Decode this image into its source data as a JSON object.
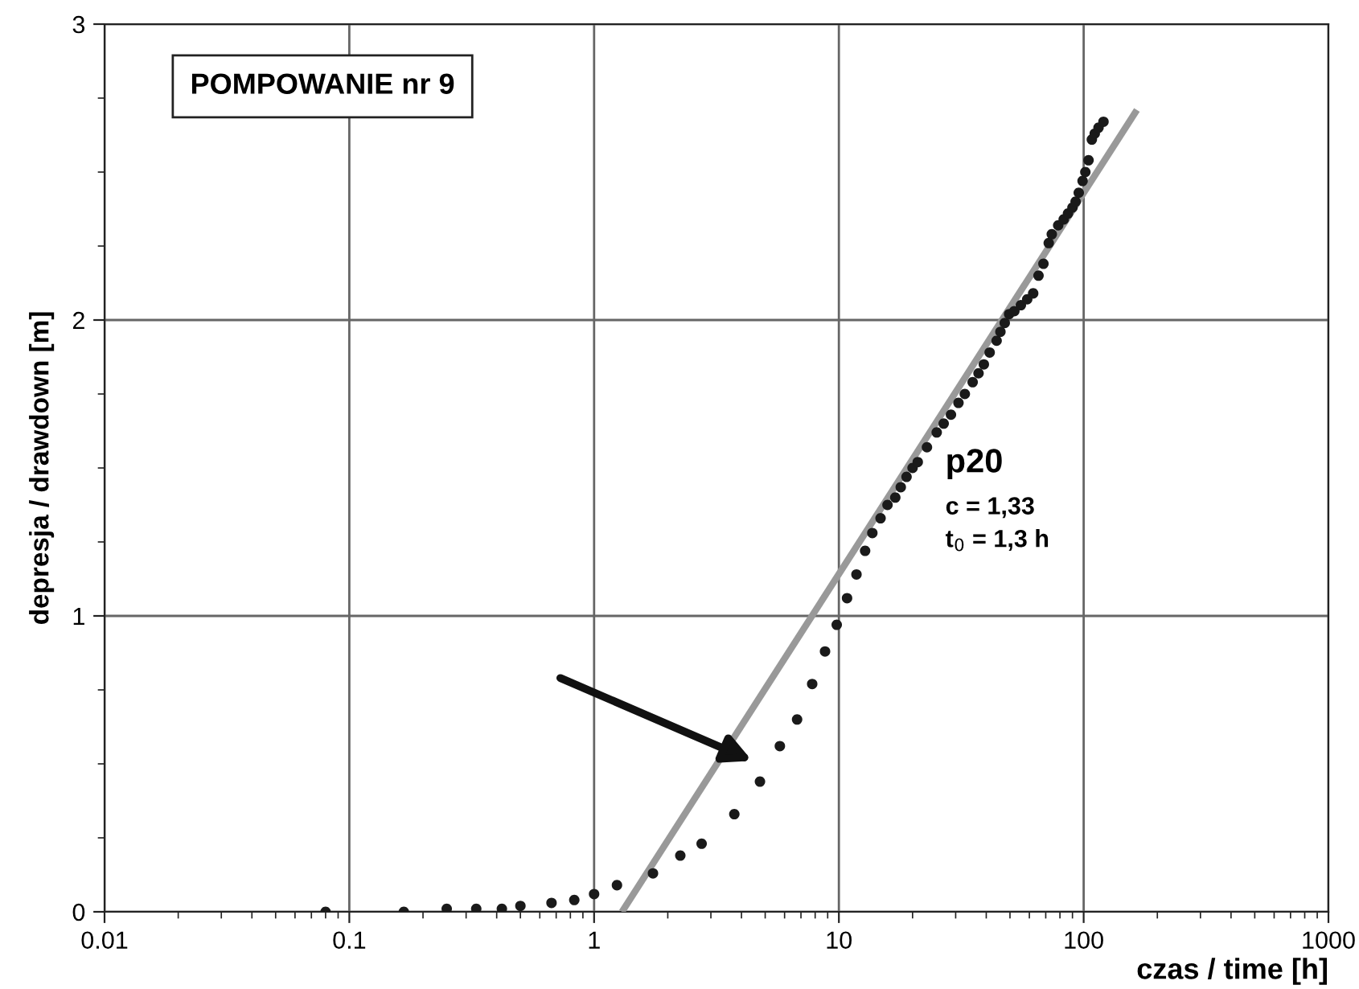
{
  "chart_data": {
    "type": "scatter",
    "title": "POMPOWANIE nr 9",
    "xlabel": "czas / time [h]",
    "ylabel": "depresja / drawdown [m]",
    "log": "x",
    "xlim": [
      0.01,
      1000
    ],
    "xticks": [
      0.01,
      0.1,
      1,
      10,
      100,
      1000
    ],
    "ylim": [
      0,
      3
    ],
    "yticks": [
      0,
      1,
      2,
      3
    ],
    "grid": true,
    "series": [
      {
        "marker": "circle",
        "color": "#1a1a1a",
        "x": [
          0.08,
          0.167,
          0.25,
          0.33,
          0.42,
          0.5,
          0.67,
          0.83,
          1.0,
          1.24,
          1.74,
          2.25,
          2.75,
          3.74,
          4.76,
          5.74,
          6.75,
          7.78,
          8.78,
          9.8,
          10.8,
          11.8,
          12.8,
          13.7,
          14.8,
          15.8,
          17.0,
          17.9,
          18.9,
          20.0,
          21.0,
          22.9,
          25.1,
          26.8,
          28.7,
          30.8,
          32.7,
          35.2,
          37.2,
          39.1,
          41.3,
          44.1,
          45.7,
          47.6,
          49.6,
          52.1,
          55.4,
          58.8,
          62.2,
          65.4,
          68.5,
          72.0,
          74.1,
          78.7,
          82.9,
          86.3,
          90,
          92.7,
          95.5,
          99,
          101.6,
          104.7,
          108,
          111,
          115,
          120.5
        ],
        "values": [
          0,
          0,
          0.01,
          0.01,
          0.01,
          0.02,
          0.03,
          0.04,
          0.06,
          0.09,
          0.13,
          0.19,
          0.23,
          0.33,
          0.44,
          0.56,
          0.65,
          0.77,
          0.88,
          0.97,
          1.06,
          1.14,
          1.22,
          1.28,
          1.33,
          1.375,
          1.4,
          1.435,
          1.47,
          1.5,
          1.52,
          1.57,
          1.62,
          1.65,
          1.68,
          1.72,
          1.75,
          1.79,
          1.82,
          1.85,
          1.89,
          1.93,
          1.96,
          1.99,
          2.02,
          2.03,
          2.05,
          2.07,
          2.09,
          2.15,
          2.19,
          2.26,
          2.29,
          2.32,
          2.34,
          2.36,
          2.38,
          2.4,
          2.43,
          2.47,
          2.5,
          2.54,
          2.61,
          2.63,
          2.65,
          2.67
        ]
      },
      {
        "type": "line",
        "color": "#999999",
        "marker": "none",
        "line_style": "solid",
        "x": [
          1.3,
          165
        ],
        "values": [
          0,
          2.71
        ]
      }
    ],
    "annotations": [
      "p20",
      "c = 1,33",
      "t$_{0}$ = 1,3 h"
    ]
  }
}
